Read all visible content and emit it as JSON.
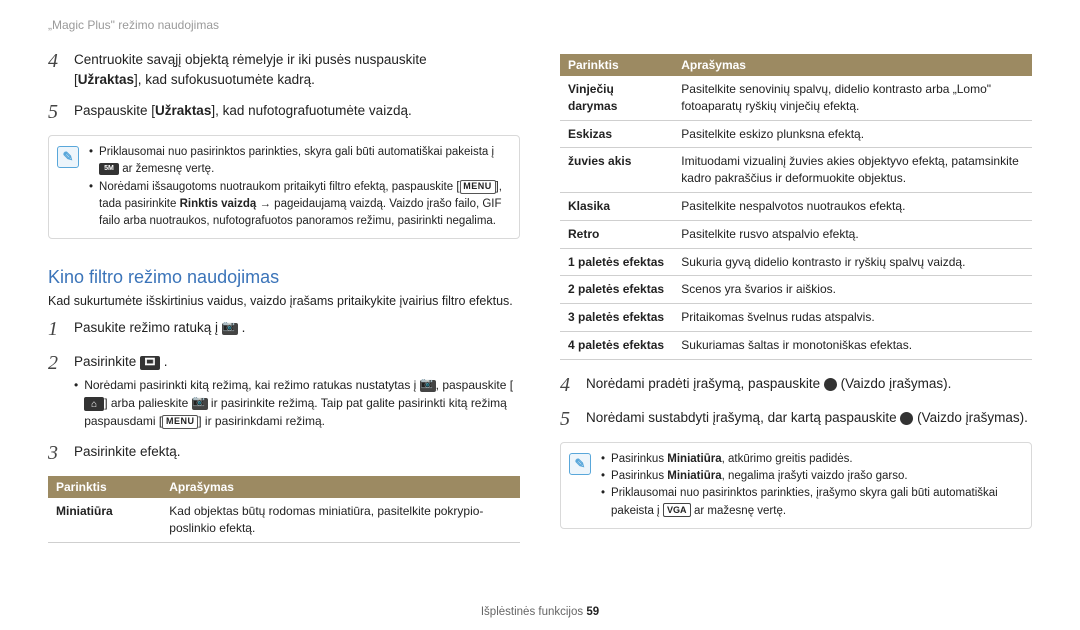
{
  "header": {
    "title": "„Magic Plus\" režimo naudojimas"
  },
  "left": {
    "step4": {
      "num": "4",
      "line1a": "Centruokite savąjį objektą rėmelyje ir iki pusės nuspauskite",
      "line1b": "[",
      "uz": "Užraktas",
      "line1c": "], kad sufokusuotumėte kadrą."
    },
    "step5": {
      "num": "5",
      "text_a": "Paspauskite [",
      "uz": "Užraktas",
      "text_b": "], kad nufotografuotumėte vaizdą."
    },
    "note1": {
      "b1a": "Priklausomai nuo pasirinktos parinkties, skyra gali būti automatiškai pakeista į",
      "b1b": " ar žemesnę vertę.",
      "b2a": "Norėdami išsaugotoms nuotraukom pritaikyti filtro efektą, paspauskite [",
      "b2b": "], tada pasirinkite ",
      "b2c": "Rinktis vaizdą",
      "b2d": " → pageidaujamą vaizdą. Vaizdo įrašo failo, GIF failo arba nuotraukos, nufotografuotos panoramos režimu, pasirinkti negalima."
    },
    "heading": "Kino filtro režimo naudojimas",
    "subtext": "Kad sukurtumėte išskirtinius vaidus, vaizdo įrašams pritaikykite įvairius filtro efektus.",
    "s1": {
      "num": "1",
      "text": "Pasukite režimo ratuką į "
    },
    "s2": {
      "num": "2",
      "text": "Pasirinkite ",
      "bul_a": "Norėdami pasirinkti kitą režimą, kai režimo ratukas nustatytas į ",
      "bul_b": ", paspauskite [",
      "bul_c": "] arba palieskite ",
      "bul_d": " ir pasirinkite režimą. Taip pat galite pasirinkti kitą režimą paspausdami [",
      "bul_e": "] ir pasirinkdami režimą."
    },
    "s3": {
      "num": "3",
      "text": "Pasirinkite efektą."
    },
    "table": {
      "h1": "Parinktis",
      "h2": "Aprašymas",
      "r1c1": "Miniatiūra",
      "r1c2": "Kad objektas būtų rodomas miniatiūra, pasitelkite pokrypio-poslinkio efektą."
    }
  },
  "right": {
    "table": {
      "h1": "Parinktis",
      "h2": "Aprašymas",
      "rows": [
        [
          "Vinječių darymas",
          "Pasitelkite senovinių spalvų, didelio kontrasto arba „Lomo\" fotoaparatų ryškių vinječių efektą."
        ],
        [
          "Eskizas",
          "Pasitelkite eskizo plunksna efektą."
        ],
        [
          "žuvies akis",
          "Imituodami vizualinį žuvies akies objektyvo efektą, patamsinkite kadro pakraščius ir deformuokite objektus."
        ],
        [
          "Klasika",
          "Pasitelkite nespalvotos nuotraukos efektą."
        ],
        [
          "Retro",
          "Pasitelkite rusvo atspalvio efektą."
        ],
        [
          "1 paletės efektas",
          "Sukuria gyvą didelio kontrasto ir ryškių spalvų vaizdą."
        ],
        [
          "2 paletės efektas",
          "Scenos yra švarios ir aiškios."
        ],
        [
          "3 paletės efektas",
          "Pritaikomas švelnus rudas atspalvis."
        ],
        [
          "4 paletės efektas",
          "Sukuriamas šaltas ir monotoniškas efektas."
        ]
      ]
    },
    "s4": {
      "num": "4",
      "text_a": "Norėdami pradėti įrašymą, paspauskite ",
      "text_b": " (Vaizdo įrašymas)."
    },
    "s5": {
      "num": "5",
      "text_a": "Norėdami sustabdyti įrašymą, dar kartą paspauskite ",
      "text_b": " (Vaizdo įrašymas)."
    },
    "note2": {
      "b1a": "Pasirinkus ",
      "b1b": "Miniatiūra",
      "b1c": ", atkūrimo greitis padidės.",
      "b2a": "Pasirinkus ",
      "b2b": "Miniatiūra",
      "b2c": ", negalima įrašyti vaizdo įrašo garso.",
      "b3a": "Priklausomai nuo pasirinktos parinkties, įrašymo skyra gali būti automatiškai pakeista į ",
      "b3b": " ar mažesnę vertę."
    }
  },
  "footer": {
    "text": "Išplėstinės funkcijos ",
    "page": "59"
  }
}
